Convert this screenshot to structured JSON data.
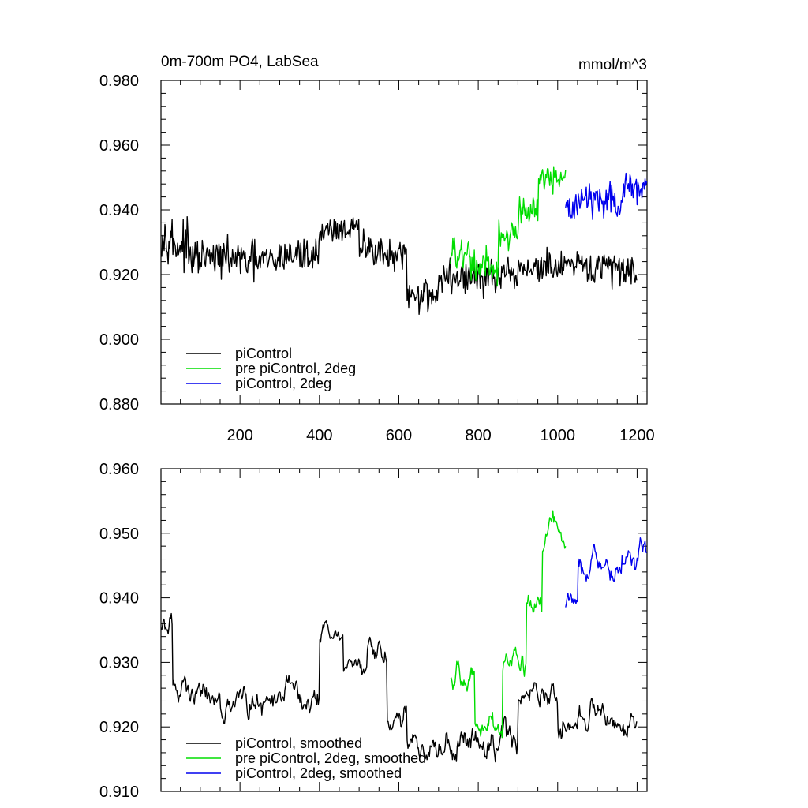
{
  "chart_data": [
    {
      "type": "line",
      "title": "0m-700m PO4, LabSea",
      "units": "mmol/m^3",
      "xlim": [
        1,
        1225
      ],
      "ylim": [
        0.88,
        0.98
      ],
      "yticks": [
        "0.880",
        "0.900",
        "0.920",
        "0.940",
        "0.960",
        "0.980"
      ],
      "xticks": [
        "200",
        "400",
        "600",
        "800",
        "1000",
        "1200"
      ],
      "legend_position": "bottom-left",
      "series": [
        {
          "name": "piControl",
          "color": "#000000",
          "x_start": 1,
          "x_end": 1200,
          "segments": [
            {
              "to": 30,
              "level": 0.932,
              "amp": 0.009
            },
            {
              "to": 70,
              "level": 0.929,
              "amp": 0.01
            },
            {
              "to": 200,
              "level": 0.925,
              "amp": 0.008
            },
            {
              "to": 300,
              "level": 0.924,
              "amp": 0.009
            },
            {
              "to": 400,
              "level": 0.926,
              "amp": 0.008
            },
            {
              "to": 500,
              "level": 0.934,
              "amp": 0.006
            },
            {
              "to": 560,
              "level": 0.928,
              "amp": 0.008
            },
            {
              "to": 620,
              "level": 0.925,
              "amp": 0.008
            },
            {
              "to": 700,
              "level": 0.914,
              "amp": 0.008
            },
            {
              "to": 900,
              "level": 0.919,
              "amp": 0.008
            },
            {
              "to": 1200,
              "level": 0.922,
              "amp": 0.008
            }
          ]
        },
        {
          "name": "pre piControl, 2deg",
          "color": "#00dd00",
          "x_start": 730,
          "x_end": 1020,
          "segments": [
            {
              "to": 780,
              "level": 0.926,
              "amp": 0.008
            },
            {
              "to": 850,
              "level": 0.922,
              "amp": 0.009
            },
            {
              "to": 900,
              "level": 0.932,
              "amp": 0.007
            },
            {
              "to": 950,
              "level": 0.94,
              "amp": 0.006
            },
            {
              "to": 1020,
              "level": 0.95,
              "amp": 0.006
            }
          ]
        },
        {
          "name": "piControl, 2deg",
          "color": "#0000ee",
          "x_start": 1020,
          "x_end": 1225,
          "segments": [
            {
              "to": 1050,
              "level": 0.941,
              "amp": 0.008
            },
            {
              "to": 1100,
              "level": 0.944,
              "amp": 0.008
            },
            {
              "to": 1160,
              "level": 0.943,
              "amp": 0.007
            },
            {
              "to": 1225,
              "level": 0.947,
              "amp": 0.008
            }
          ]
        }
      ]
    },
    {
      "type": "line",
      "title": "",
      "units": "",
      "xlim": [
        1,
        1225
      ],
      "ylim": [
        0.91,
        0.96
      ],
      "yticks": [
        "0.910",
        "0.920",
        "0.930",
        "0.940",
        "0.950",
        "0.960"
      ],
      "xticks": [],
      "legend_position": "bottom-left",
      "series": [
        {
          "name": "piControl, smoothed",
          "color": "#000000",
          "x_start": 1,
          "x_end": 1200,
          "segments": [
            {
              "to": 30,
              "level": 0.935,
              "amp": 0.004
            },
            {
              "to": 80,
              "level": 0.926,
              "amp": 0.004
            },
            {
              "to": 150,
              "level": 0.925,
              "amp": 0.004
            },
            {
              "to": 300,
              "level": 0.924,
              "amp": 0.004
            },
            {
              "to": 400,
              "level": 0.925,
              "amp": 0.004
            },
            {
              "to": 460,
              "level": 0.934,
              "amp": 0.003
            },
            {
              "to": 520,
              "level": 0.928,
              "amp": 0.004
            },
            {
              "to": 570,
              "level": 0.932,
              "amp": 0.004
            },
            {
              "to": 620,
              "level": 0.922,
              "amp": 0.004
            },
            {
              "to": 700,
              "level": 0.916,
              "amp": 0.004
            },
            {
              "to": 900,
              "level": 0.918,
              "amp": 0.005
            },
            {
              "to": 1000,
              "level": 0.925,
              "amp": 0.004
            },
            {
              "to": 1200,
              "level": 0.921,
              "amp": 0.004
            }
          ]
        },
        {
          "name": "pre piControl, 2deg, smoothed",
          "color": "#00dd00",
          "x_start": 730,
          "x_end": 1020,
          "segments": [
            {
              "to": 790,
              "level": 0.928,
              "amp": 0.004
            },
            {
              "to": 860,
              "level": 0.92,
              "amp": 0.004
            },
            {
              "to": 920,
              "level": 0.93,
              "amp": 0.004
            },
            {
              "to": 960,
              "level": 0.94,
              "amp": 0.004
            },
            {
              "to": 1020,
              "level": 0.95,
              "amp": 0.004
            }
          ]
        },
        {
          "name": "piControl, 2deg, smoothed",
          "color": "#0000ee",
          "x_start": 1020,
          "x_end": 1225,
          "segments": [
            {
              "to": 1050,
              "level": 0.94,
              "amp": 0.004
            },
            {
              "to": 1100,
              "level": 0.946,
              "amp": 0.004
            },
            {
              "to": 1160,
              "level": 0.944,
              "amp": 0.004
            },
            {
              "to": 1225,
              "level": 0.947,
              "amp": 0.004
            }
          ]
        }
      ]
    }
  ]
}
